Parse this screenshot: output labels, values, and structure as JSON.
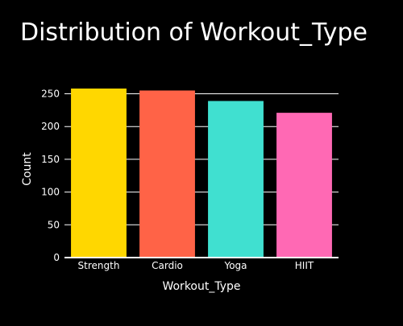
{
  "chart_data": {
    "type": "bar",
    "title": "Distribution of Workout_Type",
    "xlabel": "Workout_Type",
    "ylabel": "Count",
    "categories": [
      "Strength",
      "Cardio",
      "Yoga",
      "HIIT"
    ],
    "values": [
      258,
      255,
      239,
      221
    ],
    "colors": [
      "#FFD700",
      "#FF6347",
      "#40E0D0",
      "#FF69B4"
    ],
    "ylim": [
      0,
      258
    ],
    "yticks": [
      0,
      50,
      100,
      150,
      200,
      250
    ],
    "grid": true,
    "legend": "none",
    "background": "#000000",
    "text_color": "#ffffff",
    "grid_color": "#ffffff"
  }
}
